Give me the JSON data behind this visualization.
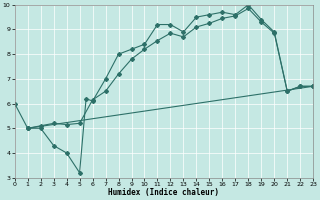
{
  "xlabel": "Humidex (Indice chaleur)",
  "xlim": [
    0,
    23
  ],
  "ylim": [
    3,
    10
  ],
  "xticks": [
    0,
    1,
    2,
    3,
    4,
    5,
    6,
    7,
    8,
    9,
    10,
    11,
    12,
    13,
    14,
    15,
    16,
    17,
    18,
    19,
    20,
    21,
    22,
    23
  ],
  "yticks": [
    3,
    4,
    5,
    6,
    7,
    8,
    9,
    10
  ],
  "bg_color": "#c5e8e3",
  "line_color": "#2d7068",
  "line1_x": [
    0,
    1,
    2,
    3,
    4,
    5,
    5.5,
    6,
    7,
    8,
    9,
    10,
    11,
    12,
    13,
    14,
    15,
    16,
    17,
    18,
    19,
    20,
    21,
    22,
    23
  ],
  "line1_y": [
    6.0,
    5.0,
    5.0,
    4.3,
    4.0,
    3.2,
    6.2,
    6.1,
    7.0,
    8.0,
    8.2,
    8.4,
    9.2,
    9.2,
    8.9,
    9.5,
    9.6,
    9.7,
    9.6,
    10.0,
    9.4,
    8.9,
    6.5,
    6.7,
    6.7
  ],
  "line2_x": [
    1,
    23
  ],
  "line2_y": [
    5.0,
    6.7
  ],
  "line3_x": [
    1,
    2,
    3,
    4,
    5,
    6,
    7,
    8,
    9,
    10,
    11,
    12,
    13,
    14,
    15,
    16,
    17,
    18,
    19,
    20,
    21,
    22,
    23
  ],
  "line3_y": [
    5.0,
    5.1,
    5.2,
    5.15,
    5.2,
    6.15,
    6.5,
    7.2,
    7.8,
    8.2,
    8.55,
    8.85,
    8.7,
    9.1,
    9.25,
    9.45,
    9.55,
    9.85,
    9.3,
    8.85,
    6.5,
    6.7,
    6.7
  ]
}
